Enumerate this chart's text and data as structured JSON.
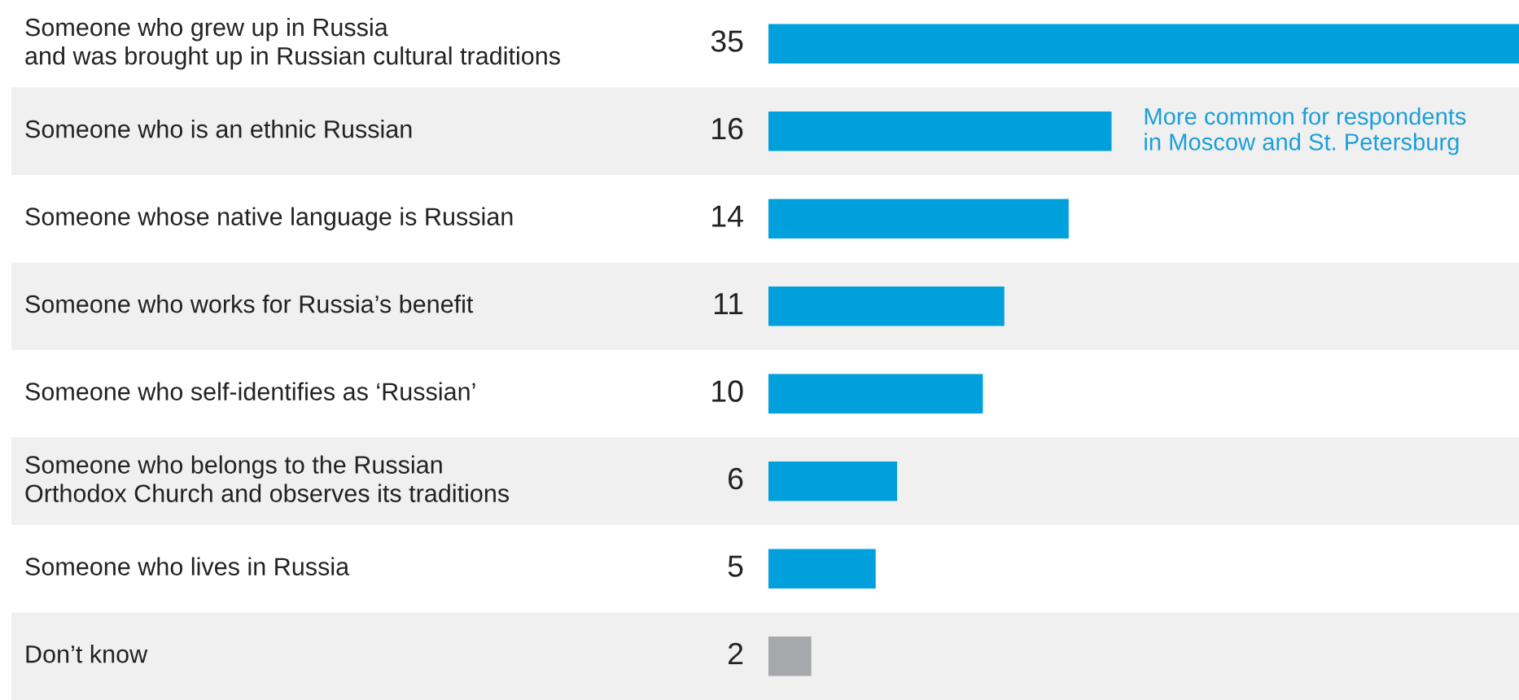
{
  "chart_data": {
    "type": "bar",
    "orientation": "horizontal",
    "categories": [
      "Someone who grew up in Russia\nand was brought up in Russian cultural traditions",
      "Someone who is an ethnic Russian",
      "Someone whose native language is Russian",
      "Someone who works for Russia’s benefit",
      "Someone who self-identifies as ‘Russian’",
      "Someone who belongs to the Russian\nOrthodox Church and observes its traditions",
      "Someone who lives in Russia",
      "Don’t know"
    ],
    "values": [
      35,
      16,
      14,
      11,
      10,
      6,
      5,
      2
    ],
    "colors": [
      "#00a0dc",
      "#00a0dc",
      "#00a0dc",
      "#00a0dc",
      "#00a0dc",
      "#00a0dc",
      "#00a0dc",
      "#a7a8ab"
    ],
    "data_labels": true,
    "annotations": [
      {
        "text": "More common for respondents\nin Moscow and St. Petersburg",
        "x": 16,
        "y": "Someone who is an ethnic Russian"
      }
    ]
  }
}
